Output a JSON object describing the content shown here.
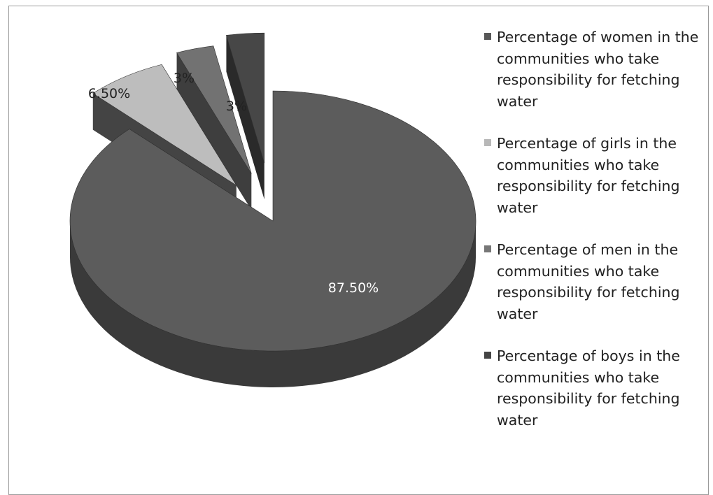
{
  "chart_data": {
    "type": "pie",
    "title": "",
    "slices": [
      {
        "name": "Percentage of women in the communities who take responsibility for fetching water",
        "value": 87.5,
        "label": "87.50%",
        "top_color": "#5c5c5c",
        "side_color": "#3a3a3a",
        "legend_color": "#585858",
        "label_color": "#ffffff",
        "exploded": false
      },
      {
        "name": "Percentage of girls in the communities who take responsibility for fetching water",
        "value": 6.5,
        "label": "6.50%",
        "top_color": "#bdbdbd",
        "side_color": "#444444",
        "legend_color": "#b8b8b8",
        "label_color": "#222222",
        "exploded": true
      },
      {
        "name": "Percentage of men in the communities who take responsibility for fetching water",
        "value": 3,
        "label": "3%",
        "top_color": "#727272",
        "side_color": "#3e3e3e",
        "legend_color": "#777777",
        "label_color": "#222222",
        "exploded": true
      },
      {
        "name": "Percentage of boys in the communities who take responsibility for fetching water",
        "value": 3,
        "label": "3%",
        "top_color": "#474747",
        "side_color": "#2a2a2a",
        "legend_color": "#444444",
        "label_color": "#222222",
        "exploded": true
      }
    ],
    "legend_position": "right"
  }
}
